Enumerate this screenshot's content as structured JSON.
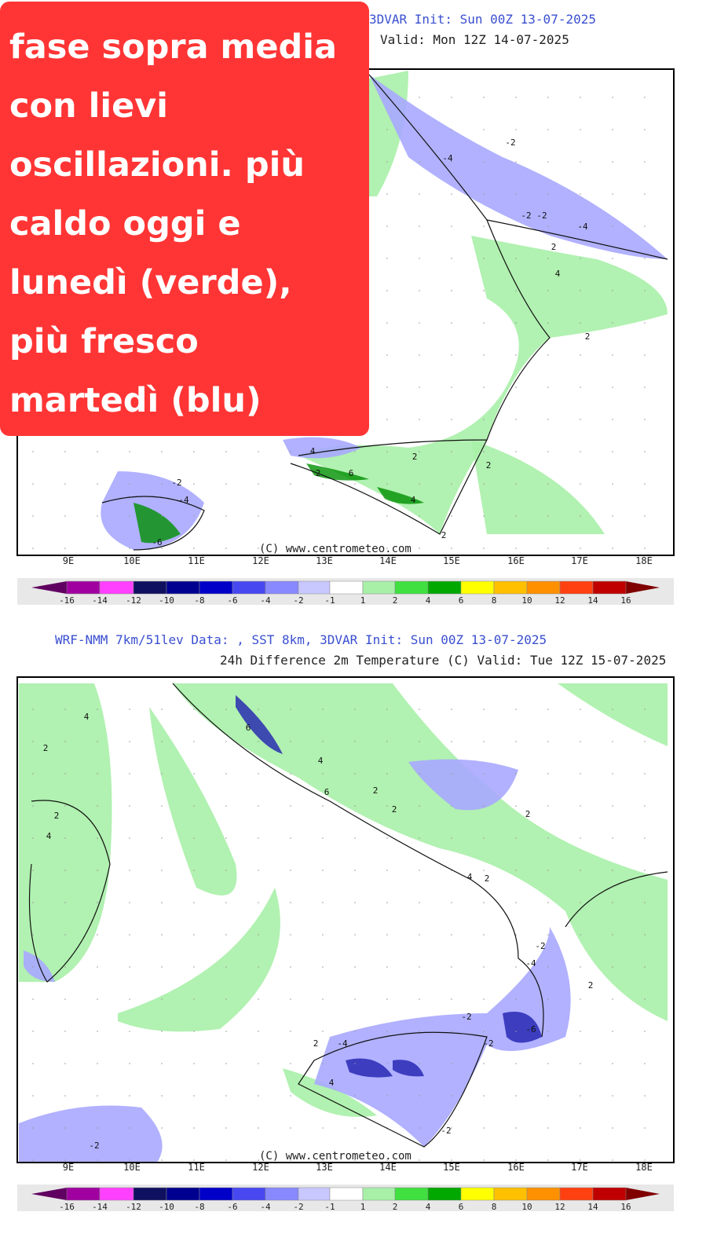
{
  "overlay": {
    "lines": [
      "fase sopra media",
      "con lievi",
      "oscillazioni. più",
      "caldo oggi e",
      "lunedì (verde),",
      "più fresco",
      "martedì (blu)"
    ]
  },
  "maps": [
    {
      "header": [
        "3DVAR   Init: Sun 00Z 13-07-2025",
        "Valid: Mon 12Z 14-07-2025"
      ],
      "copyright": "(C) www.centrometeo.com",
      "longitudes": [
        "9E",
        "10E",
        "11E",
        "12E",
        "13E",
        "14E",
        "15E",
        "16E",
        "17E",
        "18E"
      ],
      "scale": [
        "-16",
        "-14",
        "-12",
        "-10",
        "-8",
        "-6",
        "-4",
        "-2",
        "-1",
        "1",
        "2",
        "4",
        "6",
        "8",
        "10",
        "12",
        "14",
        "16"
      ],
      "contour_labels": [
        "-2",
        "-4",
        "-2",
        "-4",
        "-2",
        "2",
        "4",
        "2",
        "2",
        "2",
        "4",
        "2",
        "6",
        "2",
        "-2",
        "-4",
        "-6",
        "4"
      ]
    },
    {
      "header": [
        "WRF-NMM 7km/51lev  Data: , SST 8km, 3DVAR   Init: Sun 00Z 13-07-2025",
        "24h Difference 2m Temperature (C)   Valid: Tue 12Z 15-07-2025"
      ],
      "copyright": "(C) www.centrometeo.com",
      "longitudes": [
        "9E",
        "10E",
        "11E",
        "12E",
        "13E",
        "14E",
        "15E",
        "16E",
        "17E",
        "18E"
      ],
      "scale": [
        "-16",
        "-14",
        "-12",
        "-10",
        "-8",
        "-6",
        "-4",
        "-2",
        "-1",
        "1",
        "2",
        "4",
        "6",
        "8",
        "10",
        "12",
        "14",
        "16"
      ],
      "contour_labels": [
        "4",
        "2",
        "2",
        "4",
        "6",
        "4",
        "6",
        "2",
        "2",
        "2",
        "4",
        "2",
        "-2",
        "-4",
        "2",
        "-2",
        "-6",
        "-2",
        "-4",
        "2",
        "4",
        "-2",
        "-2"
      ]
    }
  ]
}
